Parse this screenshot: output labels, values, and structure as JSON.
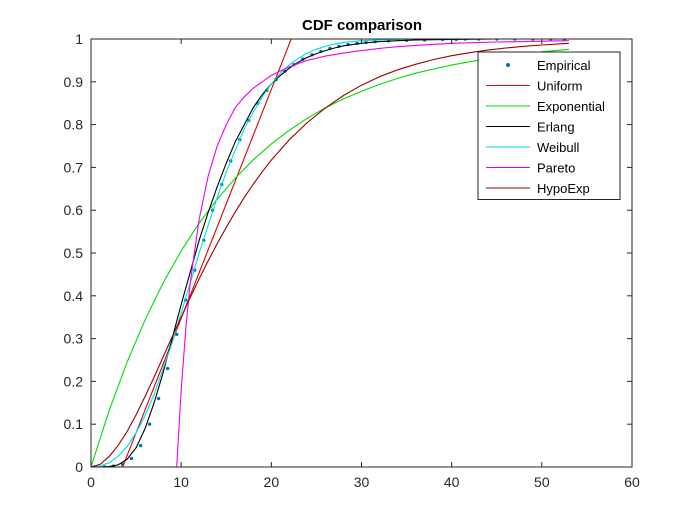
{
  "chart_data": {
    "type": "line",
    "title": "CDF comparison",
    "xlabel": "",
    "ylabel": "",
    "xlim": [
      0,
      60
    ],
    "ylim": [
      0,
      1
    ],
    "x_ticks": [
      0,
      10,
      20,
      30,
      40,
      50,
      60
    ],
    "y_ticks": [
      0,
      0.1,
      0.2,
      0.3,
      0.4,
      0.5,
      0.6,
      0.7,
      0.8,
      0.9,
      1
    ],
    "x_tick_labels": [
      "0",
      "10",
      "20",
      "30",
      "40",
      "50",
      "60"
    ],
    "y_tick_labels": [
      "0",
      "0.1",
      "0.2",
      "0.3",
      "0.4",
      "0.5",
      "0.6",
      "0.7",
      "0.8",
      "0.9",
      "1"
    ],
    "grid": false,
    "legend_position": "top-right",
    "series": [
      {
        "name": "Empirical",
        "style": "points",
        "color": "#0072BD",
        "x": [
          1.5,
          2.5,
          3.5,
          4.5,
          5.5,
          6.5,
          7.5,
          8.5,
          9.5,
          10.5,
          11.5,
          12.5,
          13.5,
          14.5,
          15.5,
          16.5,
          17.5,
          18.5,
          19.5,
          20.5,
          21.5,
          22.5,
          23.5,
          24.5,
          25.5,
          26.5,
          27.5,
          28.5,
          29.5,
          30.5,
          31.5,
          33,
          35,
          37,
          39,
          40.5,
          41.5,
          43,
          45,
          47,
          49,
          51,
          52.5
        ],
        "y": [
          0.0,
          0.002,
          0.006,
          0.02,
          0.05,
          0.1,
          0.16,
          0.23,
          0.31,
          0.39,
          0.46,
          0.53,
          0.6,
          0.66,
          0.715,
          0.765,
          0.81,
          0.85,
          0.88,
          0.905,
          0.925,
          0.94,
          0.953,
          0.963,
          0.971,
          0.978,
          0.983,
          0.987,
          0.99,
          0.992,
          0.994,
          0.996,
          0.997,
          0.998,
          0.999,
          0.999,
          1.0,
          1.0,
          1.0,
          1.0,
          1.0,
          1.0,
          1.0
        ]
      },
      {
        "name": "Uniform",
        "style": "line",
        "color": "#e00000",
        "x": [
          0,
          3.5,
          22.2,
          53
        ],
        "y": [
          0,
          0,
          1,
          1
        ]
      },
      {
        "name": "Exponential",
        "style": "line",
        "color": "#00dd00",
        "x": [
          0,
          2,
          4,
          6,
          8,
          10,
          12,
          14,
          16,
          18,
          20,
          22,
          24,
          26,
          28,
          30,
          32,
          34,
          36,
          38,
          40,
          42,
          44,
          46,
          48,
          50,
          53
        ],
        "y": [
          0,
          0.131,
          0.245,
          0.344,
          0.43,
          0.505,
          0.57,
          0.626,
          0.675,
          0.718,
          0.755,
          0.787,
          0.815,
          0.839,
          0.86,
          0.878,
          0.894,
          0.908,
          0.92,
          0.93,
          0.939,
          0.947,
          0.954,
          0.96,
          0.965,
          0.97,
          0.976
        ]
      },
      {
        "name": "Erlang",
        "style": "line",
        "color": "#000000",
        "x": [
          1,
          2,
          3,
          4,
          5,
          6,
          7,
          8,
          9,
          10,
          11,
          12,
          13,
          14,
          15,
          16,
          17,
          18,
          19,
          20,
          21,
          22,
          23,
          24,
          25,
          26,
          27,
          28,
          30,
          32,
          34,
          36,
          40,
          45,
          53
        ],
        "y": [
          0.0,
          0.001,
          0.005,
          0.018,
          0.045,
          0.09,
          0.15,
          0.22,
          0.3,
          0.38,
          0.455,
          0.53,
          0.595,
          0.655,
          0.71,
          0.76,
          0.8,
          0.84,
          0.87,
          0.895,
          0.915,
          0.932,
          0.946,
          0.957,
          0.966,
          0.973,
          0.979,
          0.984,
          0.99,
          0.994,
          0.996,
          0.998,
          0.999,
          1.0,
          1.0
        ]
      },
      {
        "name": "Weibull",
        "style": "line",
        "color": "#00e0e0",
        "x": [
          0,
          1,
          2,
          3,
          4,
          5,
          6,
          7,
          8,
          9,
          10,
          11,
          12,
          13,
          14,
          15,
          16,
          17,
          18,
          19,
          20,
          21,
          22,
          23,
          24,
          25,
          26,
          27,
          28,
          30,
          32,
          34,
          36,
          40,
          45,
          53
        ],
        "y": [
          0,
          0.002,
          0.01,
          0.025,
          0.048,
          0.08,
          0.12,
          0.17,
          0.23,
          0.29,
          0.36,
          0.43,
          0.5,
          0.565,
          0.63,
          0.69,
          0.74,
          0.79,
          0.83,
          0.865,
          0.895,
          0.92,
          0.94,
          0.955,
          0.967,
          0.976,
          0.983,
          0.988,
          0.992,
          0.996,
          0.998,
          0.999,
          1.0,
          1.0,
          1.0,
          1.0
        ]
      },
      {
        "name": "Pareto",
        "style": "line",
        "color": "#ee00ee",
        "x": [
          0,
          9.5,
          10,
          10.5,
          11,
          12,
          13,
          14,
          15,
          16,
          17,
          18,
          19,
          20,
          22,
          24,
          26,
          28,
          30,
          32,
          34,
          36,
          40,
          45,
          53
        ],
        "y": [
          0,
          0,
          0.18,
          0.32,
          0.43,
          0.58,
          0.68,
          0.75,
          0.8,
          0.84,
          0.865,
          0.885,
          0.9,
          0.915,
          0.935,
          0.95,
          0.96,
          0.967,
          0.973,
          0.978,
          0.982,
          0.985,
          0.99,
          0.993,
          0.996
        ]
      },
      {
        "name": "HypoExp",
        "style": "line",
        "color": "#990000",
        "x": [
          0,
          1,
          2,
          3,
          4,
          5,
          6,
          7,
          8,
          9,
          10,
          11,
          12,
          13,
          14,
          15,
          16,
          17,
          18,
          19,
          20,
          22,
          24,
          26,
          28,
          30,
          32,
          34,
          36,
          38,
          40,
          42,
          44,
          46,
          48,
          50,
          53
        ],
        "y": [
          0,
          0.006,
          0.024,
          0.05,
          0.083,
          0.122,
          0.165,
          0.21,
          0.257,
          0.304,
          0.35,
          0.396,
          0.44,
          0.482,
          0.522,
          0.56,
          0.596,
          0.63,
          0.661,
          0.69,
          0.717,
          0.765,
          0.805,
          0.839,
          0.868,
          0.892,
          0.912,
          0.928,
          0.941,
          0.952,
          0.961,
          0.968,
          0.974,
          0.979,
          0.983,
          0.986,
          0.99
        ]
      }
    ]
  }
}
